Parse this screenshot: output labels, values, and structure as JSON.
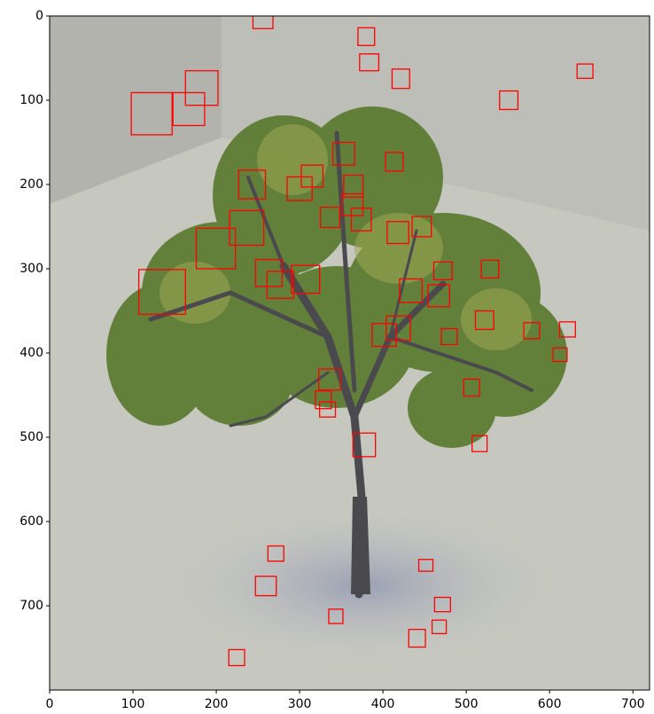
{
  "chart_data": {
    "type": "image",
    "xlim": [
      0,
      720
    ],
    "ylim": [
      800,
      0
    ],
    "xticks": [
      0,
      100,
      200,
      300,
      400,
      500,
      600,
      700
    ],
    "yticks": [
      0,
      100,
      200,
      300,
      400,
      500,
      600,
      700
    ],
    "box_color": "#ff0000",
    "boxes": [
      [
        244,
        -5,
        268,
        15
      ],
      [
        370,
        14,
        390,
        35
      ],
      [
        372,
        45,
        395,
        65
      ],
      [
        411,
        63,
        432,
        86
      ],
      [
        633,
        57,
        652,
        74
      ],
      [
        540,
        89,
        562,
        111
      ],
      [
        163,
        65,
        202,
        106
      ],
      [
        148,
        91,
        186,
        130
      ],
      [
        98,
        91,
        147,
        141
      ],
      [
        340,
        150,
        366,
        177
      ],
      [
        403,
        162,
        424,
        184
      ],
      [
        302,
        177,
        328,
        203
      ],
      [
        285,
        191,
        315,
        219
      ],
      [
        227,
        183,
        259,
        217
      ],
      [
        353,
        189,
        376,
        215
      ],
      [
        351,
        211,
        376,
        237
      ],
      [
        325,
        227,
        348,
        251
      ],
      [
        362,
        228,
        386,
        255
      ],
      [
        216,
        231,
        257,
        272
      ],
      [
        435,
        238,
        458,
        262
      ],
      [
        405,
        244,
        431,
        270
      ],
      [
        176,
        252,
        223,
        300
      ],
      [
        247,
        289,
        279,
        321
      ],
      [
        261,
        303,
        293,
        335
      ],
      [
        290,
        296,
        324,
        329
      ],
      [
        107,
        301,
        163,
        354
      ],
      [
        461,
        292,
        483,
        313
      ],
      [
        518,
        290,
        539,
        311
      ],
      [
        420,
        312,
        447,
        340
      ],
      [
        454,
        319,
        480,
        345
      ],
      [
        511,
        350,
        533,
        372
      ],
      [
        404,
        356,
        433,
        385
      ],
      [
        387,
        365,
        416,
        392
      ],
      [
        470,
        371,
        489,
        390
      ],
      [
        569,
        364,
        588,
        383
      ],
      [
        612,
        363,
        631,
        381
      ],
      [
        604,
        394,
        621,
        410
      ],
      [
        497,
        431,
        516,
        451
      ],
      [
        323,
        419,
        349,
        444
      ],
      [
        319,
        445,
        338,
        466
      ],
      [
        324,
        458,
        343,
        476
      ],
      [
        364,
        495,
        391,
        523
      ],
      [
        507,
        498,
        525,
        517
      ],
      [
        262,
        629,
        281,
        647
      ],
      [
        443,
        645,
        460,
        659
      ],
      [
        247,
        665,
        272,
        688
      ],
      [
        462,
        690,
        481,
        707
      ],
      [
        335,
        704,
        352,
        721
      ],
      [
        459,
        717,
        476,
        733
      ],
      [
        431,
        728,
        451,
        749
      ],
      [
        215,
        752,
        234,
        771
      ]
    ]
  }
}
